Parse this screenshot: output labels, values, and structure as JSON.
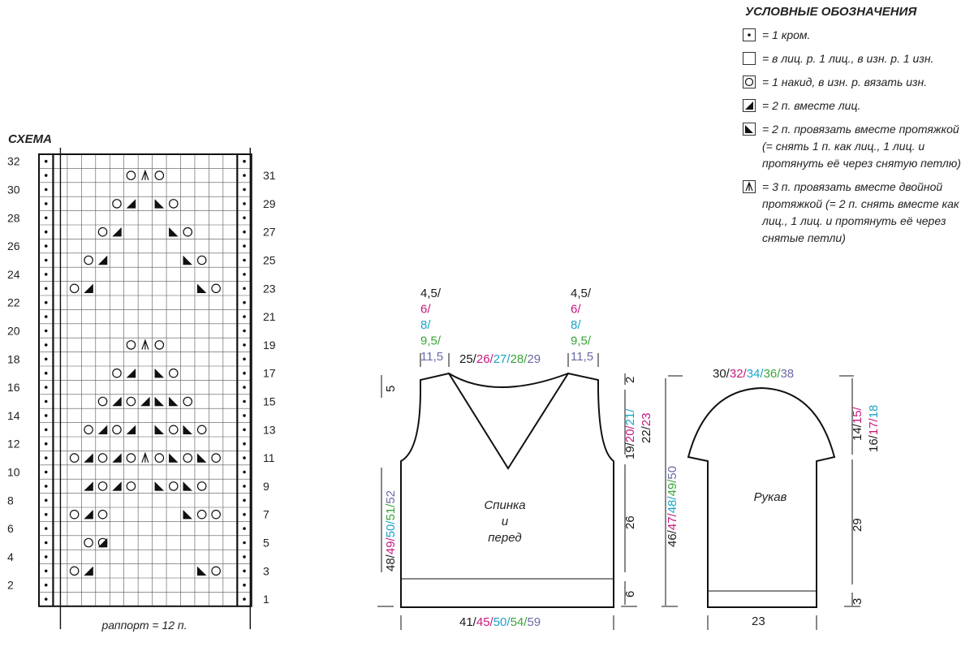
{
  "chart": {
    "title": "СХЕМА",
    "left_row_numbers": [
      "32",
      "30",
      "28",
      "26",
      "24",
      "22",
      "20",
      "18",
      "16",
      "14",
      "12",
      "10",
      "8",
      "6",
      "4",
      "2"
    ],
    "right_row_numbers": [
      "31",
      "29",
      "27",
      "25",
      "23",
      "21",
      "19",
      "17",
      "15",
      "13",
      "11",
      "9",
      "7",
      "5",
      "3",
      "1"
    ],
    "repeat_label": "раппорт = 12 п."
  },
  "legend": {
    "title": "УСЛОВНЫЕ ОБОЗНАЧЕНИЯ",
    "items": [
      {
        "symbol": "selvage-dot",
        "text": "= 1 кром."
      },
      {
        "symbol": "empty",
        "text": "= в лиц. р. 1 лиц., в изн. р. 1 изн."
      },
      {
        "symbol": "yarn-over",
        "text": "= 1 накид, в изн. р. вязать изн."
      },
      {
        "symbol": "k2tog",
        "text": "= 2 п. вместе лиц."
      },
      {
        "symbol": "ssk",
        "text": "= 2 п. провязать вместе протяжкой (= снять 1 п. как лиц., 1 лиц. и протянуть её через снятую петлю)"
      },
      {
        "symbol": "double-decrease",
        "text": "= 3 п. провязать вместе двойной протяжкой (= 2 п. снять вместе как лиц., 1 лиц. и протянуть её через снятые петли)"
      }
    ]
  },
  "size_colors": [
    "#1a1a1a",
    "#c8197f",
    "#1aa3c8",
    "#3aa33a",
    "#6a6aa8"
  ],
  "body": {
    "label_lines": [
      "Спинка",
      "и",
      "перед"
    ],
    "shoulder_left": [
      "4,5/",
      "6/",
      "8/",
      "9,5/",
      "11,5"
    ],
    "shoulder_right": [
      "4,5/",
      "6/",
      "8/",
      "9,5/",
      "11,5"
    ],
    "neck_width": [
      "25/",
      "26/",
      "27/",
      "28/",
      "29"
    ],
    "neck_depth": "5",
    "armhole_depth_left_top": "2",
    "armhole_depth": [
      "19/",
      "20/",
      "21/",
      "22/",
      "23"
    ],
    "side_length": "26",
    "rib_height": "6",
    "total_length": [
      "48/",
      "49/",
      "50/",
      "51/",
      "52"
    ],
    "width": [
      "41/",
      "45/",
      "50/",
      "54/",
      "59"
    ]
  },
  "sleeve": {
    "label": "Рукав",
    "top_width": [
      "30/",
      "32/",
      "34/",
      "36/",
      "38"
    ],
    "cap_height": [
      "14/",
      "15/",
      "16/",
      "17/",
      "18"
    ],
    "total_length": [
      "46/",
      "47/",
      "48/",
      "49/",
      "50"
    ],
    "length": "29",
    "cuff": "3",
    "bottom_width": "23"
  }
}
